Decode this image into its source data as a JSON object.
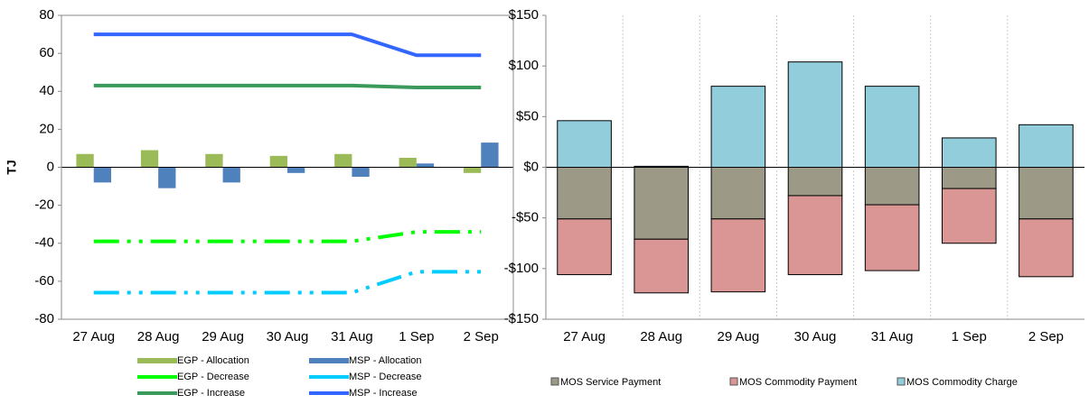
{
  "chart_data": [
    {
      "type": "combo",
      "y_label": "TJ",
      "categories": [
        "27 Aug",
        "28 Aug",
        "29 Aug",
        "30 Aug",
        "31 Aug",
        "1 Sep",
        "2 Sep"
      ],
      "ylim": [
        -80,
        80
      ],
      "yticks": [
        -80,
        -60,
        -40,
        -20,
        0,
        20,
        40,
        60,
        80
      ],
      "series": [
        {
          "name": "EGP - Allocation",
          "type": "bar",
          "color": "#9bbb59",
          "values": [
            7,
            9,
            7,
            6,
            7,
            5,
            -3
          ]
        },
        {
          "name": "MSP - Allocation",
          "type": "bar",
          "color": "#4f81bd",
          "values": [
            -8,
            -11,
            -8,
            -3,
            -5,
            2,
            13
          ]
        },
        {
          "name": "EGP - Decrease",
          "type": "line",
          "dash": true,
          "color": "#00ff00",
          "values": [
            -39,
            -39,
            -39,
            -39,
            -39,
            -34,
            -34
          ]
        },
        {
          "name": "MSP - Decrease",
          "type": "line",
          "dash": true,
          "color": "#00ccff",
          "values": [
            -66,
            -66,
            -66,
            -66,
            -66,
            -55,
            -55
          ]
        },
        {
          "name": "EGP - Increase",
          "type": "line",
          "dash": false,
          "color": "#3a9a5c",
          "values": [
            43,
            43,
            43,
            43,
            43,
            42,
            42
          ]
        },
        {
          "name": "MSP - Increase",
          "type": "line",
          "dash": false,
          "color": "#3366ff",
          "values": [
            70,
            70,
            70,
            70,
            70,
            59,
            59
          ]
        }
      ]
    },
    {
      "type": "stacked_bar",
      "grid": true,
      "categories": [
        "27 Aug",
        "28 Aug",
        "29 Aug",
        "30 Aug",
        "31 Aug",
        "1 Sep",
        "2 Sep"
      ],
      "ylim": [
        -150,
        150
      ],
      "yticks": [
        {
          "value": -150,
          "label": "-$150"
        },
        {
          "value": -100,
          "label": "-$100"
        },
        {
          "value": -50,
          "label": "-$50"
        },
        {
          "value": 0,
          "label": "$0"
        },
        {
          "value": 50,
          "label": "$50"
        },
        {
          "value": 100,
          "label": "$100"
        },
        {
          "value": 150,
          "label": "$150"
        }
      ],
      "series": [
        {
          "name": "MOS Service Payment",
          "color": "#9c9a86",
          "values": [
            -51,
            -71,
            -51,
            -28,
            -37,
            -21,
            -51
          ]
        },
        {
          "name": "MOS Commodity Payment",
          "color": "#da9694",
          "values": [
            -55,
            -53,
            -72,
            -78,
            -65,
            -54,
            -57
          ]
        },
        {
          "name": "MOS Commodity Charge",
          "color": "#92cddc",
          "values": [
            46,
            1,
            80,
            104,
            80,
            29,
            42
          ]
        }
      ]
    }
  ]
}
